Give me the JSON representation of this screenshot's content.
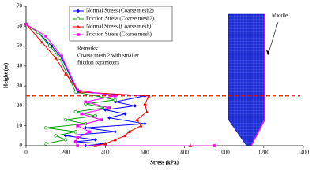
{
  "chart_data": {
    "type": "line",
    "xlabel": "Stress (kPa)",
    "ylabel": "Height (m)",
    "xlim": [
      0,
      1400
    ],
    "xticks": [
      0,
      200,
      400,
      600,
      800,
      1000,
      1200,
      1400
    ],
    "ylim": [
      0,
      70
    ],
    "yticks": [
      0,
      10,
      20,
      30,
      40,
      50,
      60,
      70
    ],
    "reference_line": 25,
    "reference_color": "#ff0000",
    "remarks": [
      "Remarks:",
      "Coarse mesh 2 with smaller",
      "friction parameters"
    ],
    "annotation": "Middle",
    "series": [
      {
        "name": "Normal Stress (Coarse mesh2)",
        "color": "#0000ff",
        "marker": "diamond",
        "x": [
          0,
          60,
          130,
          180,
          260,
          600,
          450,
          550,
          400,
          500,
          420,
          600,
          300,
          450,
          200,
          350,
          250,
          400,
          300
        ],
        "values": [
          61,
          57,
          50,
          44,
          27,
          25,
          22,
          20,
          18,
          16,
          14,
          11,
          9,
          7,
          5,
          3,
          2,
          1,
          0
        ]
      },
      {
        "name": "Friction Stress (Coarse mesh2)",
        "color": "#00a000",
        "marker": "circle",
        "x": [
          0,
          60,
          120,
          170,
          250,
          450,
          300,
          400,
          250,
          350,
          200,
          300,
          100,
          250,
          150,
          200,
          100
        ],
        "values": [
          61,
          57,
          50,
          44,
          27,
          23,
          21,
          19,
          17,
          15,
          13,
          11,
          9,
          7,
          5,
          3,
          1
        ]
      },
      {
        "name": "Normal Stress (Coarse mesh)",
        "color": "#ff0000",
        "marker": "triangle",
        "x": [
          0,
          80,
          150,
          200,
          270,
          620,
          600,
          610,
          560,
          580,
          520,
          500,
          450,
          400,
          350,
          830
        ],
        "values": [
          61,
          52,
          44,
          36,
          27,
          25,
          21,
          17,
          13,
          10,
          7,
          5,
          3,
          1,
          0,
          0
        ]
      },
      {
        "name": "Friction Stress (Coarse mesh)",
        "color": "#ff00ff",
        "marker": "square",
        "x": [
          0,
          100,
          180,
          260,
          450,
          300,
          420,
          280,
          380,
          260,
          320,
          260,
          250,
          260,
          950
        ],
        "values": [
          61,
          55,
          45,
          28,
          25,
          22,
          19,
          16,
          13,
          10,
          7,
          4,
          2,
          0,
          0
        ]
      }
    ]
  }
}
